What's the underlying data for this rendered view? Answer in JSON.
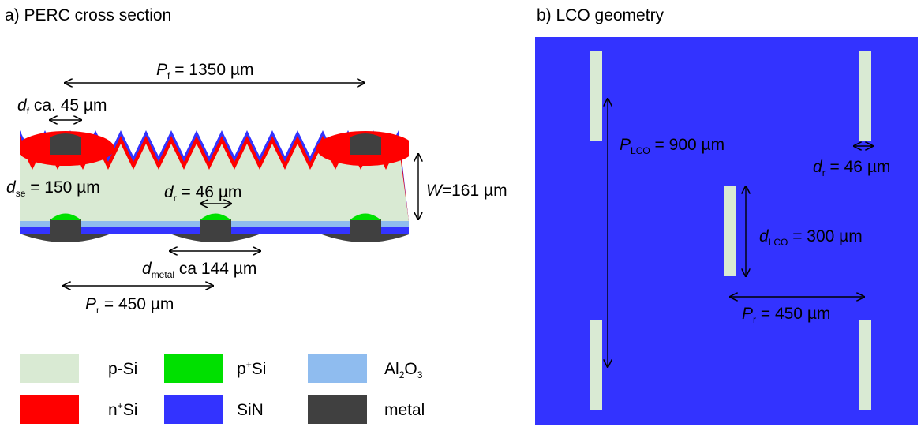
{
  "panels": [
    {
      "title": "a) PERC cross section"
    },
    {
      "title": "b) LCO geometry"
    }
  ],
  "cross_section_labels": [
    {
      "segments": [
        {
          "text": "P",
          "style": "italic"
        },
        {
          "text": "f",
          "style": "sub"
        },
        {
          "text": " = 1350 µm"
        }
      ]
    },
    {
      "segments": [
        {
          "text": "d",
          "style": "italic"
        },
        {
          "text": "f",
          "style": "sub"
        },
        {
          "text": " ca. 45 µm"
        }
      ]
    },
    {
      "segments": [
        {
          "text": "d",
          "style": "italic"
        },
        {
          "text": "se",
          "style": "sub"
        },
        {
          "text": " = 150 µm"
        }
      ]
    },
    {
      "segments": [
        {
          "text": "d",
          "style": "italic"
        },
        {
          "text": "r",
          "style": "sub"
        },
        {
          "text": " = 46 µm"
        }
      ]
    },
    {
      "segments": [
        {
          "text": "W",
          "style": "italic"
        },
        {
          "text": "=161 µm"
        }
      ]
    },
    {
      "segments": [
        {
          "text": "d",
          "style": "italic"
        },
        {
          "text": "metal",
          "style": "sub"
        },
        {
          "text": " ca 144 µm"
        }
      ]
    },
    {
      "segments": [
        {
          "text": "P",
          "style": "italic"
        },
        {
          "text": "r",
          "style": "sub"
        },
        {
          "text": " = 450 µm"
        }
      ]
    }
  ],
  "legend": [
    {
      "color": "#d9ead3",
      "segments": [
        {
          "text": "p-Si"
        }
      ]
    },
    {
      "color": "#00e000",
      "segments": [
        {
          "text": "p"
        },
        {
          "text": "+",
          "style": "sup"
        },
        {
          "text": "Si"
        }
      ]
    },
    {
      "color": "#8fbcef",
      "segments": [
        {
          "text": "Al"
        },
        {
          "text": "2",
          "style": "sub"
        },
        {
          "text": "O"
        },
        {
          "text": "3",
          "style": "sub"
        }
      ]
    },
    {
      "color": "#ff0000",
      "segments": [
        {
          "text": "n"
        },
        {
          "text": "+",
          "style": "sup"
        },
        {
          "text": "Si"
        }
      ]
    },
    {
      "color": "#3333ff",
      "segments": [
        {
          "text": "SiN"
        }
      ]
    },
    {
      "color": "#404040",
      "segments": [
        {
          "text": "metal"
        }
      ]
    }
  ],
  "lco_labels": [
    {
      "segments": [
        {
          "text": "P",
          "style": "italic"
        },
        {
          "text": "LCO",
          "style": "sub"
        },
        {
          "text": " = 900 µm"
        }
      ]
    },
    {
      "segments": [
        {
          "text": "d",
          "style": "italic"
        },
        {
          "text": "r",
          "style": "sub"
        },
        {
          "text": " = 46 µm"
        }
      ]
    },
    {
      "segments": [
        {
          "text": "d",
          "style": "italic"
        },
        {
          "text": "LCO",
          "style": "sub"
        },
        {
          "text": " = 300 µm"
        }
      ]
    },
    {
      "segments": [
        {
          "text": "P",
          "style": "italic"
        },
        {
          "text": "r",
          "style": "sub"
        },
        {
          "text": " = 450 µm"
        }
      ]
    }
  ]
}
